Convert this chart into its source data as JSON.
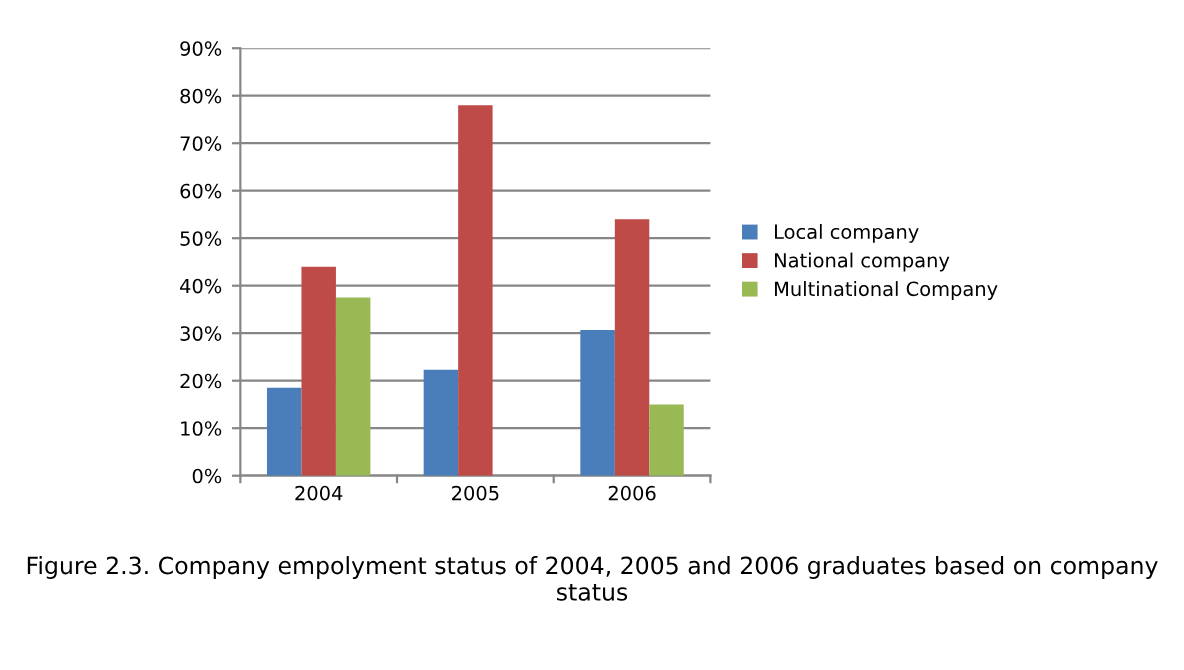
{
  "chart_data": {
    "type": "bar",
    "categories": [
      "2004",
      "2005",
      "2006"
    ],
    "series": [
      {
        "name": "Local company",
        "color": "#4a7ebb",
        "values": [
          18.5,
          22.3,
          30.7
        ]
      },
      {
        "name": "National company",
        "color": "#be4b48",
        "values": [
          44,
          78,
          54
        ]
      },
      {
        "name": "Multinational Company",
        "color": "#98b954",
        "values": [
          37.5,
          0,
          15
        ]
      }
    ],
    "ylim": [
      0,
      90
    ],
    "yticks": [
      {
        "value": 0,
        "label": "0%"
      },
      {
        "value": 10,
        "label": "10%"
      },
      {
        "value": 20,
        "label": "20%"
      },
      {
        "value": 30,
        "label": "30%"
      },
      {
        "value": 40,
        "label": "40%"
      },
      {
        "value": 50,
        "label": "50%"
      },
      {
        "value": 60,
        "label": "60%"
      },
      {
        "value": 70,
        "label": "70%"
      },
      {
        "value": 80,
        "label": "80%"
      },
      {
        "value": 90,
        "label": "90%"
      }
    ],
    "grid": "y",
    "legend": "right",
    "annotations": [
      "Figure 2.3. Company empolyment status of 2004, 2005 and 2006 graduates based on company status"
    ]
  }
}
